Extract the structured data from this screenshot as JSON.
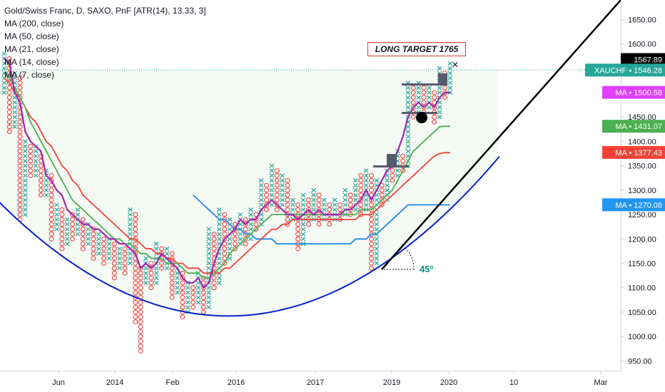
{
  "legend": {
    "title": "Gold/Swiss Franc, D, SAXO, PnF [ATR(14), 13.33, 3]",
    "items": [
      "MA (200, close)",
      "MA (50, close)",
      "MA (21, close)",
      "MA (14, close)",
      "MA (7, close)"
    ]
  },
  "annotations": {
    "target": "LONG TARGET 1765",
    "angle": "45º"
  },
  "chart_data": {
    "type": "line",
    "ylim": [
      930,
      1690
    ],
    "y_ticks": [
      950,
      1000,
      1050,
      1100,
      1150,
      1200,
      1250,
      1300,
      1350,
      1400,
      1450,
      1500,
      1550,
      1600,
      1650
    ],
    "x_ticks": [
      "Jun",
      "2014",
      "Feb",
      "2016",
      "2017",
      "2019",
      "2020",
      "10",
      "Mar"
    ],
    "price_tags": [
      {
        "label": "",
        "value": "1567.89",
        "y": 1567.89,
        "color": "#000000"
      },
      {
        "label": "XAUCHF",
        "value": "1546.28",
        "y": 1546.28,
        "color": "#26a69a"
      },
      {
        "label": "MA",
        "value": "1500.58",
        "y": 1500.58,
        "color": "#e040fb"
      },
      {
        "label": "MA",
        "value": "1431.07",
        "y": 1431.07,
        "color": "#4caf50"
      },
      {
        "label": "MA",
        "value": "1377.43",
        "y": 1377.43,
        "color": "#f44336"
      },
      {
        "label": "MA",
        "value": "1270.08",
        "y": 1270.08,
        "color": "#2196f3"
      }
    ],
    "colors": {
      "x_col": "#26a69a",
      "o_col": "#ef5350",
      "ma7": "#9c27b0",
      "ma14": "#4caf50",
      "ma21": "#f44336",
      "ma50": "#1e88e5",
      "cup": "#0022cc",
      "trend": "#000000"
    },
    "columns": [
      {
        "t": "X",
        "lo": 1500,
        "hi": 1580
      },
      {
        "t": "O",
        "lo": 1420,
        "hi": 1570
      },
      {
        "t": "X",
        "lo": 1430,
        "hi": 1540
      },
      {
        "t": "O",
        "lo": 1240,
        "hi": 1530
      },
      {
        "t": "X",
        "lo": 1250,
        "hi": 1400
      },
      {
        "t": "O",
        "lo": 1330,
        "hi": 1390
      },
      {
        "t": "X",
        "lo": 1330,
        "hi": 1390
      },
      {
        "t": "O",
        "lo": 1290,
        "hi": 1370
      },
      {
        "t": "X",
        "lo": 1290,
        "hi": 1340
      },
      {
        "t": "O",
        "lo": 1200,
        "hi": 1330
      },
      {
        "t": "X",
        "lo": 1220,
        "hi": 1270
      },
      {
        "t": "O",
        "lo": 1180,
        "hi": 1260
      },
      {
        "t": "X",
        "lo": 1190,
        "hi": 1240
      },
      {
        "t": "O",
        "lo": 1200,
        "hi": 1250
      },
      {
        "t": "X",
        "lo": 1210,
        "hi": 1260
      },
      {
        "t": "O",
        "lo": 1180,
        "hi": 1240
      },
      {
        "t": "X",
        "lo": 1190,
        "hi": 1230
      },
      {
        "t": "O",
        "lo": 1160,
        "hi": 1220
      },
      {
        "t": "X",
        "lo": 1170,
        "hi": 1210
      },
      {
        "t": "O",
        "lo": 1150,
        "hi": 1200
      },
      {
        "t": "X",
        "lo": 1160,
        "hi": 1200
      },
      {
        "t": "O",
        "lo": 1120,
        "hi": 1190
      },
      {
        "t": "X",
        "lo": 1140,
        "hi": 1180
      },
      {
        "t": "O",
        "lo": 1130,
        "hi": 1180
      },
      {
        "t": "X",
        "lo": 1150,
        "hi": 1260
      },
      {
        "t": "O",
        "lo": 1030,
        "hi": 1250
      },
      {
        "t": "O",
        "lo": 970,
        "hi": 1140
      },
      {
        "t": "X",
        "lo": 1110,
        "hi": 1160
      },
      {
        "t": "O",
        "lo": 1100,
        "hi": 1150
      },
      {
        "t": "X",
        "lo": 1110,
        "hi": 1190
      },
      {
        "t": "O",
        "lo": 1140,
        "hi": 1180
      },
      {
        "t": "X",
        "lo": 1140,
        "hi": 1180
      },
      {
        "t": "O",
        "lo": 1080,
        "hi": 1170
      },
      {
        "t": "X",
        "lo": 1090,
        "hi": 1140
      },
      {
        "t": "O",
        "lo": 1040,
        "hi": 1130
      },
      {
        "t": "X",
        "lo": 1050,
        "hi": 1110
      },
      {
        "t": "O",
        "lo": 1060,
        "hi": 1100
      },
      {
        "t": "X",
        "lo": 1070,
        "hi": 1130
      },
      {
        "t": "O",
        "lo": 1050,
        "hi": 1120
      },
      {
        "t": "X",
        "lo": 1060,
        "hi": 1220
      },
      {
        "t": "O",
        "lo": 1100,
        "hi": 1210
      },
      {
        "t": "X",
        "lo": 1110,
        "hi": 1260
      },
      {
        "t": "O",
        "lo": 1150,
        "hi": 1250
      },
      {
        "t": "X",
        "lo": 1160,
        "hi": 1240
      },
      {
        "t": "O",
        "lo": 1180,
        "hi": 1230
      },
      {
        "t": "X",
        "lo": 1190,
        "hi": 1250
      },
      {
        "t": "O",
        "lo": 1190,
        "hi": 1240
      },
      {
        "t": "X",
        "lo": 1200,
        "hi": 1260
      },
      {
        "t": "O",
        "lo": 1220,
        "hi": 1250
      },
      {
        "t": "X",
        "lo": 1230,
        "hi": 1320
      },
      {
        "t": "O",
        "lo": 1260,
        "hi": 1310
      },
      {
        "t": "X",
        "lo": 1270,
        "hi": 1350
      },
      {
        "t": "O",
        "lo": 1260,
        "hi": 1340
      },
      {
        "t": "X",
        "lo": 1270,
        "hi": 1330
      },
      {
        "t": "O",
        "lo": 1230,
        "hi": 1320
      },
      {
        "t": "X",
        "lo": 1240,
        "hi": 1280
      },
      {
        "t": "O",
        "lo": 1180,
        "hi": 1270
      },
      {
        "t": "X",
        "lo": 1190,
        "hi": 1290
      },
      {
        "t": "O",
        "lo": 1230,
        "hi": 1280
      },
      {
        "t": "X",
        "lo": 1240,
        "hi": 1300
      },
      {
        "t": "O",
        "lo": 1230,
        "hi": 1290
      },
      {
        "t": "X",
        "lo": 1240,
        "hi": 1280
      },
      {
        "t": "O",
        "lo": 1230,
        "hi": 1270
      },
      {
        "t": "X",
        "lo": 1240,
        "hi": 1280
      },
      {
        "t": "O",
        "lo": 1240,
        "hi": 1270
      },
      {
        "t": "X",
        "lo": 1250,
        "hi": 1300
      },
      {
        "t": "O",
        "lo": 1250,
        "hi": 1290
      },
      {
        "t": "X",
        "lo": 1260,
        "hi": 1320
      },
      {
        "t": "O",
        "lo": 1250,
        "hi": 1330
      },
      {
        "t": "X",
        "lo": 1260,
        "hi": 1340
      },
      {
        "t": "O",
        "lo": 1140,
        "hi": 1330
      },
      {
        "t": "X",
        "lo": 1150,
        "hi": 1320
      },
      {
        "t": "O",
        "lo": 1270,
        "hi": 1310
      },
      {
        "t": "X",
        "lo": 1280,
        "hi": 1340
      },
      {
        "t": "O",
        "lo": 1320,
        "hi": 1350
      },
      {
        "t": "X",
        "lo": 1330,
        "hi": 1380
      },
      {
        "t": "O",
        "lo": 1340,
        "hi": 1370
      },
      {
        "t": "X",
        "lo": 1350,
        "hi": 1520
      },
      {
        "t": "O",
        "lo": 1450,
        "hi": 1510
      },
      {
        "t": "X",
        "lo": 1460,
        "hi": 1520
      },
      {
        "t": "O",
        "lo": 1460,
        "hi": 1510
      },
      {
        "t": "X",
        "lo": 1470,
        "hi": 1510
      },
      {
        "t": "O",
        "lo": 1440,
        "hi": 1500
      },
      {
        "t": "X",
        "lo": 1450,
        "hi": 1550
      },
      {
        "t": "O",
        "lo": 1490,
        "hi": 1540
      },
      {
        "t": "X",
        "lo": 1500,
        "hi": 1560
      }
    ],
    "ma7": [
      1570,
      1560,
      1500,
      1480,
      1420,
      1400,
      1390,
      1380,
      1330,
      1320,
      1300,
      1290,
      1260,
      1250,
      1240,
      1230,
      1230,
      1220,
      1220,
      1210,
      1200,
      1200,
      1190,
      1190,
      1180,
      1170,
      1140,
      1150,
      1140,
      1150,
      1170,
      1160,
      1150,
      1140,
      1120,
      1110,
      1110,
      1120,
      1100,
      1110,
      1150,
      1180,
      1200,
      1210,
      1220,
      1240,
      1230,
      1240,
      1240,
      1260,
      1270,
      1280,
      1270,
      1260,
      1250,
      1250,
      1240,
      1250,
      1260,
      1250,
      1260,
      1250,
      1250,
      1250,
      1250,
      1260,
      1260,
      1270,
      1280,
      1300,
      1280,
      1300,
      1320,
      1340,
      1350,
      1380,
      1410,
      1450,
      1470,
      1480,
      1470,
      1480,
      1470,
      1490,
      1500,
      1500
    ],
    "ma14": [
      1540,
      1530,
      1510,
      1490,
      1470,
      1440,
      1420,
      1400,
      1380,
      1360,
      1340,
      1320,
      1300,
      1280,
      1270,
      1260,
      1250,
      1240,
      1230,
      1220,
      1210,
      1200,
      1200,
      1190,
      1190,
      1180,
      1170,
      1170,
      1160,
      1160,
      1160,
      1150,
      1150,
      1150,
      1140,
      1130,
      1130,
      1130,
      1120,
      1120,
      1130,
      1140,
      1150,
      1170,
      1180,
      1190,
      1200,
      1210,
      1220,
      1230,
      1240,
      1250,
      1250,
      1250,
      1250,
      1250,
      1250,
      1250,
      1250,
      1250,
      1250,
      1250,
      1250,
      1250,
      1250,
      1250,
      1250,
      1250,
      1260,
      1260,
      1260,
      1270,
      1280,
      1290,
      1300,
      1320,
      1340,
      1360,
      1380,
      1390,
      1400,
      1410,
      1420,
      1430,
      1431,
      1431
    ],
    "ma21": [
      1530,
      1520,
      1500,
      1490,
      1470,
      1450,
      1440,
      1420,
      1400,
      1390,
      1370,
      1350,
      1340,
      1320,
      1310,
      1290,
      1280,
      1270,
      1260,
      1250,
      1240,
      1230,
      1220,
      1210,
      1200,
      1200,
      1190,
      1180,
      1180,
      1170,
      1170,
      1160,
      1160,
      1150,
      1150,
      1140,
      1140,
      1140,
      1130,
      1130,
      1130,
      1130,
      1140,
      1140,
      1150,
      1160,
      1170,
      1180,
      1190,
      1200,
      1210,
      1220,
      1220,
      1230,
      1230,
      1240,
      1240,
      1240,
      1240,
      1240,
      1240,
      1240,
      1240,
      1240,
      1240,
      1240,
      1240,
      1240,
      1250,
      1250,
      1250,
      1260,
      1270,
      1280,
      1290,
      1300,
      1310,
      1320,
      1330,
      1340,
      1350,
      1360,
      1370,
      1375,
      1377,
      1377
    ],
    "ma50": [
      null,
      null,
      null,
      null,
      null,
      null,
      null,
      null,
      null,
      null,
      null,
      null,
      null,
      null,
      null,
      null,
      null,
      null,
      null,
      null,
      null,
      null,
      null,
      null,
      null,
      null,
      null,
      null,
      null,
      null,
      null,
      null,
      null,
      null,
      null,
      null,
      1290,
      1280,
      1270,
      1260,
      1250,
      1240,
      1240,
      1230,
      1220,
      1220,
      1210,
      1210,
      1200,
      1200,
      1200,
      1200,
      1190,
      1190,
      1190,
      1190,
      1190,
      1190,
      1190,
      1190,
      1190,
      1190,
      1190,
      1190,
      1190,
      1190,
      1190,
      1200,
      1200,
      1200,
      1210,
      1210,
      1220,
      1230,
      1240,
      1250,
      1260,
      1270,
      1270,
      1270,
      1270,
      1270,
      1270,
      1270,
      1270,
      1270
    ]
  }
}
